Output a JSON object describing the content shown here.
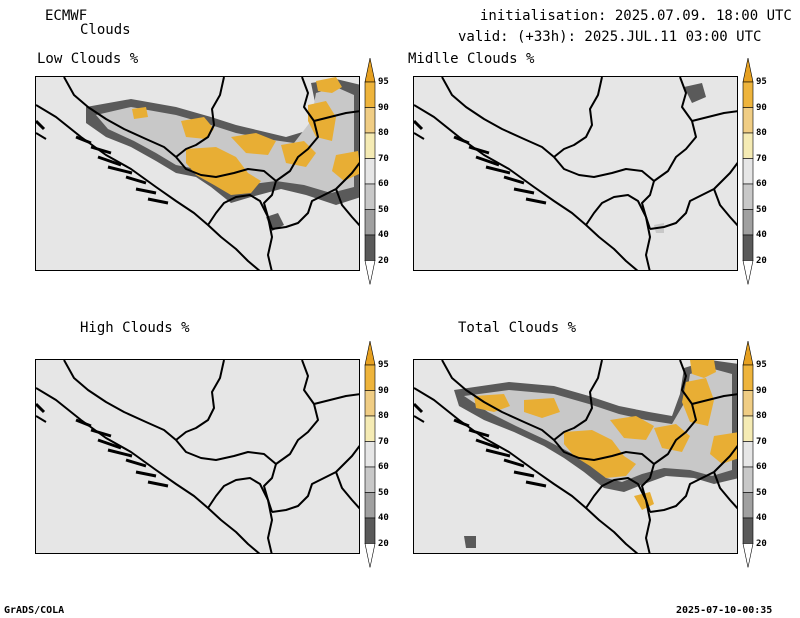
{
  "header": {
    "model": "ECMWF",
    "product": "Clouds",
    "initialisation": "initialisation: 2025.07.09. 18:00 UTC",
    "valid": "valid: (+33h): 2025.JUL.11 03:00 UTC"
  },
  "panels": [
    {
      "id": "low",
      "title": "Low Clouds %"
    },
    {
      "id": "middle",
      "title": "Midlle Clouds %"
    },
    {
      "id": "high",
      "title": "High Clouds %"
    },
    {
      "id": "total",
      "title": "Total Clouds %"
    }
  ],
  "colorbar": {
    "levels": [
      "95",
      "90",
      "80",
      "70",
      "60",
      "50",
      "40",
      "20"
    ],
    "colors": [
      "#e6a020",
      "#eeb43c",
      "#f0cd84",
      "#f5ebb4",
      "#e6e6e6",
      "#c8c8c8",
      "#a0a0a0",
      "#5a5a5a",
      "#ffffff"
    ]
  },
  "footer": {
    "left": "GrADS/COLA",
    "right": "2025-07-10-00:35"
  },
  "cloud_colors": {
    "gray_dark": "#5a5a5a",
    "gray_mid": "#969696",
    "gray_light": "#c8c8c8",
    "orange": "#e8ae34",
    "orange_light": "#f0c878"
  }
}
